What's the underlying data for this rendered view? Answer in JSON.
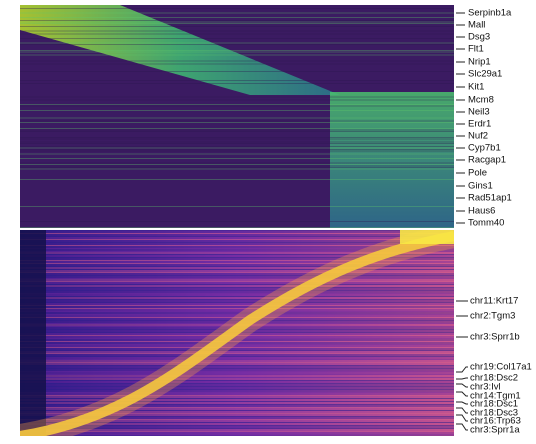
{
  "top_genes": [
    "Serpinb1a",
    "Mall",
    "Dsg3",
    "Flt1",
    "Nrip1",
    "Slc29a1",
    "Kit1",
    "Mcm8",
    "Neil3",
    "Erdr1",
    "Nuf2",
    "Cyp7b1",
    "Racgap1",
    "Pole",
    "Gins1",
    "Rad51ap1",
    "Haus6",
    "Tomm40"
  ],
  "bottom_peaks": [
    "chr11:Krt17",
    "chr2:Tgm3",
    "chr3:Sprr1b",
    "chr19:Col17a1",
    "chr18:Dsc2",
    "chr3:Ivl",
    "chr14:Tgm1",
    "chr18:Dsc1",
    "chr18:Dsc3",
    "chr16:Trp63",
    "chr3:Sprr1a"
  ]
}
